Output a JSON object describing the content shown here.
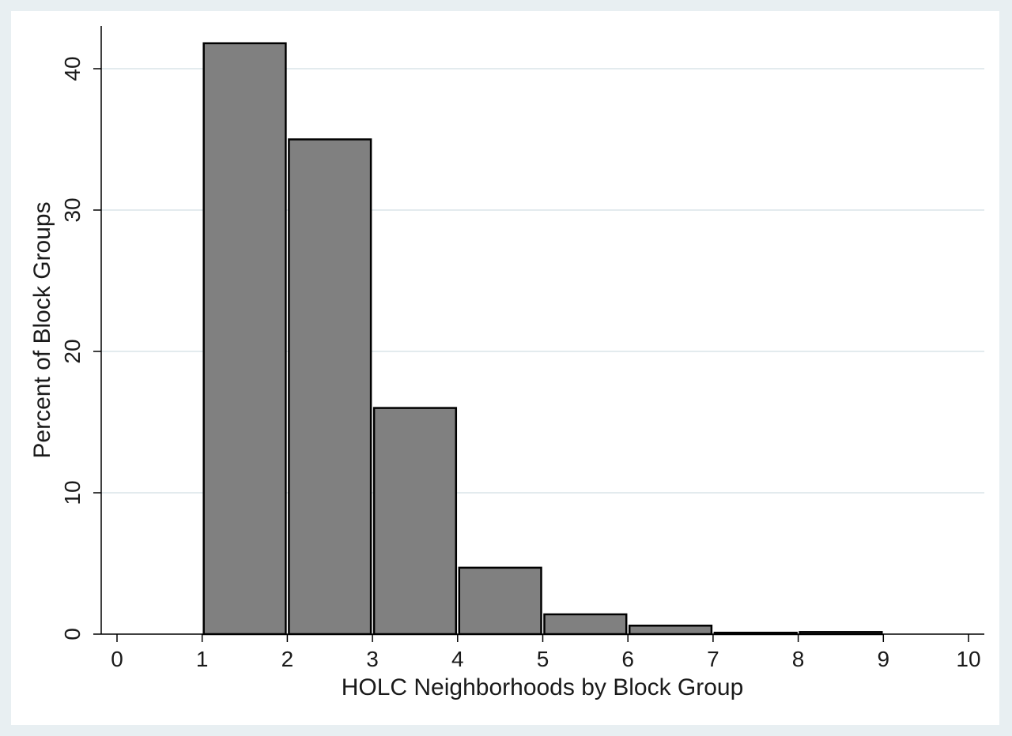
{
  "chart_data": {
    "type": "bar",
    "subtype": "histogram",
    "xlabel": "HOLC Neighborhoods by Block Group",
    "ylabel": "Percent of Block Groups",
    "x_ticks": [
      0,
      1,
      2,
      3,
      4,
      5,
      6,
      7,
      8,
      9,
      10
    ],
    "y_ticks": [
      0,
      10,
      20,
      30,
      40
    ],
    "xlim": [
      0,
      10
    ],
    "ylim": [
      0,
      43
    ],
    "grid": "horizontal",
    "bins": [
      {
        "start": 1,
        "end": 2,
        "value": 41.8
      },
      {
        "start": 2,
        "end": 3,
        "value": 35.0
      },
      {
        "start": 3,
        "end": 4,
        "value": 16.0
      },
      {
        "start": 4,
        "end": 5,
        "value": 4.7
      },
      {
        "start": 5,
        "end": 6,
        "value": 1.4
      },
      {
        "start": 6,
        "end": 7,
        "value": 0.6
      },
      {
        "start": 7,
        "end": 8,
        "value": 0.1
      },
      {
        "start": 8,
        "end": 9,
        "value": 0.15
      }
    ],
    "colors": {
      "bar_fill": "#808080",
      "bar_stroke": "#000000",
      "outer_bg": "#e8eff2",
      "plot_bg": "#ffffff",
      "grid": "#e3ebee"
    }
  }
}
